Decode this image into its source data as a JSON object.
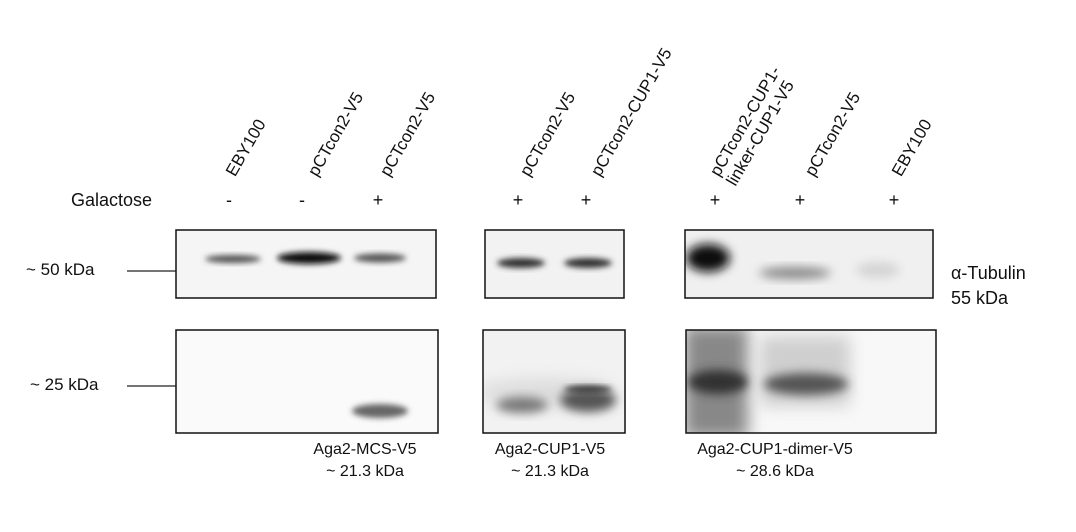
{
  "lanes": [
    {
      "label": "EBY100",
      "galactose": "-"
    },
    {
      "label": "pCTcon2-V5",
      "galactose": "-"
    },
    {
      "label": "pCTcon2-V5",
      "galactose": "+"
    },
    {
      "label": "pCTcon2-V5",
      "galactose": "+"
    },
    {
      "label": "pCTcon2-CUP1-V5",
      "galactose": "+"
    },
    {
      "label_line1": "pCTcon2-CUP1-",
      "label_line2": "linker-CUP1-V5",
      "galactose": "+"
    },
    {
      "label": "pCTcon2-V5",
      "galactose": "+"
    },
    {
      "label": "EBY100",
      "galactose": "+"
    }
  ],
  "galactose_label": "Galactose",
  "markers": {
    "upper": "~ 50 kDa",
    "lower": "~ 25 kDa"
  },
  "tubulin": {
    "line1": "α-Tubulin",
    "line2": "55 kDa"
  },
  "constructs": [
    {
      "name": "Aga2-MCS-V5",
      "size": "~ 21.3 kDa"
    },
    {
      "name": "Aga2-CUP1-V5",
      "size": "~ 21.3 kDa"
    },
    {
      "name": "Aga2-CUP1-dimer-V5",
      "size": "~ 28.6 kDa"
    }
  ]
}
